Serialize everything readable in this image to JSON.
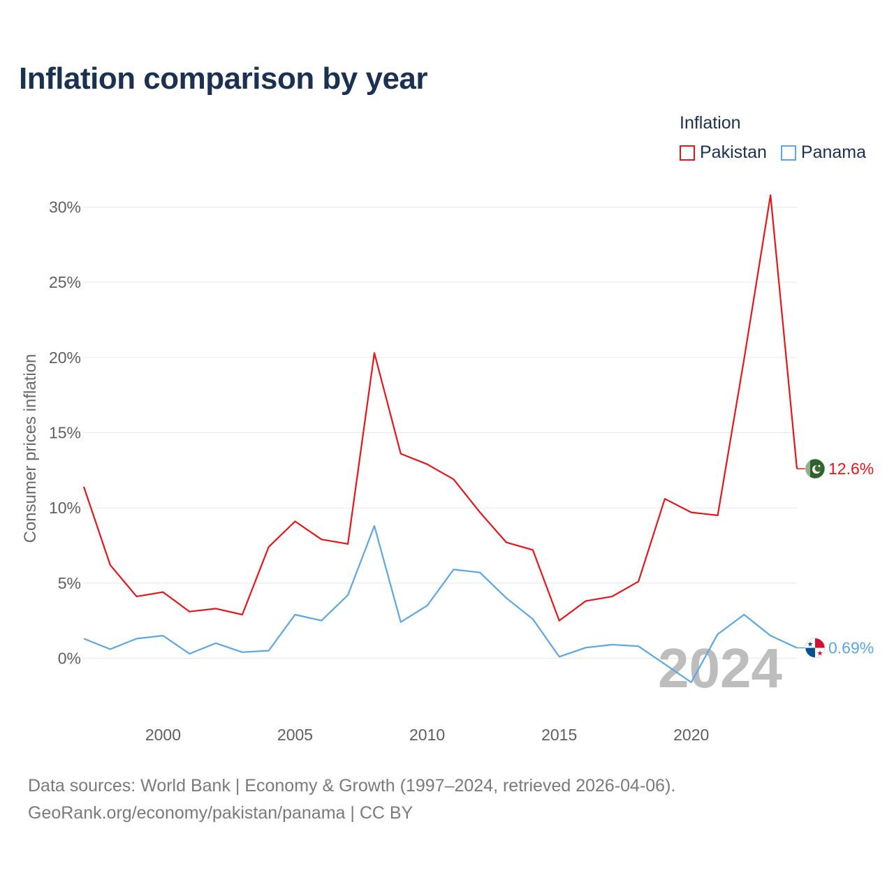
{
  "title": "Inflation comparison by year",
  "legend": {
    "title": "Inflation",
    "items": [
      {
        "label": "Pakistan",
        "color": "#e8141a"
      },
      {
        "label": "Panama",
        "color": "#5aa7e6"
      }
    ]
  },
  "footer": {
    "line1": "Data sources: World Bank | Economy & Growth (1997–2024, retrieved 2026-04-06).",
    "line2": "GeoRank.org/economy/pakistan/panama | CC BY"
  },
  "chart_data": {
    "type": "line",
    "title": "Inflation comparison by year",
    "xlabel": "",
    "ylabel": "Consumer prices inflation",
    "x": [
      1997,
      1998,
      1999,
      2000,
      2001,
      2002,
      2003,
      2004,
      2005,
      2006,
      2007,
      2008,
      2009,
      2010,
      2011,
      2012,
      2013,
      2014,
      2015,
      2016,
      2017,
      2018,
      2019,
      2020,
      2021,
      2022,
      2023,
      2024
    ],
    "xlim": [
      1997,
      2024
    ],
    "ylim": [
      -3,
      31
    ],
    "x_ticks": [
      2000,
      2005,
      2010,
      2015,
      2020
    ],
    "y_ticks": [
      0,
      5,
      10,
      15,
      20,
      25,
      30
    ],
    "y_tick_labels": [
      "0%",
      "5%",
      "10%",
      "15%",
      "20%",
      "25%",
      "30%"
    ],
    "grid": true,
    "legend_position": "top-right",
    "watermark_year": "2024",
    "series": [
      {
        "name": "Pakistan",
        "color": "#e8141a",
        "values": [
          11.4,
          6.2,
          4.1,
          4.4,
          3.1,
          3.3,
          2.9,
          7.4,
          9.1,
          7.9,
          7.6,
          20.3,
          13.6,
          12.9,
          11.9,
          9.7,
          7.7,
          7.2,
          2.5,
          3.8,
          4.1,
          5.1,
          10.6,
          9.7,
          9.5,
          19.9,
          30.8,
          12.6
        ],
        "end_label": "12.6%",
        "flag": "pakistan-flag-icon"
      },
      {
        "name": "Panama",
        "color": "#5aa7e6",
        "values": [
          1.3,
          0.6,
          1.3,
          1.5,
          0.3,
          1.0,
          0.4,
          0.5,
          2.9,
          2.5,
          4.2,
          8.8,
          2.4,
          3.5,
          5.9,
          5.7,
          4.0,
          2.6,
          0.1,
          0.7,
          0.9,
          0.8,
          -0.4,
          -1.6,
          1.6,
          2.9,
          1.5,
          0.69
        ],
        "end_label": "0.69%",
        "flag": "panama-flag-icon"
      }
    ]
  }
}
